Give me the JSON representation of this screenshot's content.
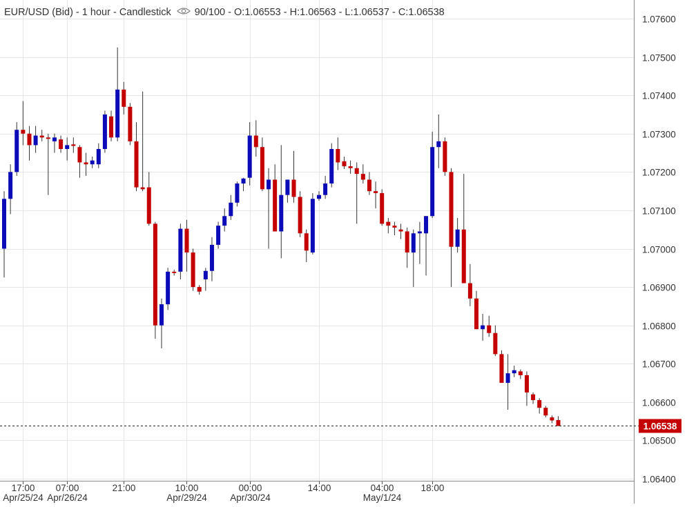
{
  "header": {
    "symbol": "EUR/USD (Bid)",
    "interval": "1 hour",
    "style": "Candlestick",
    "visibility": "90/100",
    "ohlc": "O:1.06553 - H:1.06563 - L:1.06537 - C:1.06538"
  },
  "colors": {
    "up": "#0b0bb8",
    "down": "#c40000",
    "wick": "#333333",
    "grid": "#e6e6e6",
    "price_tag": "#c40000"
  },
  "chart_data": {
    "type": "candlestick",
    "title": "EUR/USD (Bid) - 1 hour - Candlestick",
    "ylim": [
      1.064,
      1.0765
    ],
    "y_ticks": [
      "1.07600",
      "1.07500",
      "1.07400",
      "1.07300",
      "1.07200",
      "1.07100",
      "1.07000",
      "1.06900",
      "1.06800",
      "1.06700",
      "1.06600",
      "1.06500",
      "1.06400"
    ],
    "x_ticks": [
      {
        "index": 3,
        "time": "17:00",
        "date": "Apr/25/24"
      },
      {
        "index": 10,
        "time": "07:00",
        "date": "Apr/26/24"
      },
      {
        "index": 19,
        "time": "21:00",
        "date": ""
      },
      {
        "index": 29,
        "time": "10:00",
        "date": "Apr/29/24"
      },
      {
        "index": 39,
        "time": "00:00",
        "date": "Apr/30/24"
      },
      {
        "index": 50,
        "time": "14:00",
        "date": ""
      },
      {
        "index": 60,
        "time": "04:00",
        "date": "May/1/24"
      },
      {
        "index": 68,
        "time": "18:00",
        "date": ""
      }
    ],
    "last_price": "1.06538",
    "grid": true,
    "candles": [
      {
        "o": 1.07,
        "h": 1.0715,
        "l": 1.06925,
        "c": 1.0713
      },
      {
        "o": 1.0713,
        "h": 1.0722,
        "l": 1.0709,
        "c": 1.072
      },
      {
        "o": 1.072,
        "h": 1.0733,
        "l": 1.0719,
        "c": 1.0731
      },
      {
        "o": 1.0731,
        "h": 1.07385,
        "l": 1.0727,
        "c": 1.073
      },
      {
        "o": 1.073,
        "h": 1.0732,
        "l": 1.0723,
        "c": 1.0727
      },
      {
        "o": 1.0727,
        "h": 1.0732,
        "l": 1.0725,
        "c": 1.07295
      },
      {
        "o": 1.07295,
        "h": 1.0731,
        "l": 1.0728,
        "c": 1.0729
      },
      {
        "o": 1.0729,
        "h": 1.073,
        "l": 1.0714,
        "c": 1.07287
      },
      {
        "o": 1.0728,
        "h": 1.073,
        "l": 1.0725,
        "c": 1.0729
      },
      {
        "o": 1.07285,
        "h": 1.07295,
        "l": 1.0725,
        "c": 1.0726
      },
      {
        "o": 1.0726,
        "h": 1.0729,
        "l": 1.0723,
        "c": 1.0727
      },
      {
        "o": 1.07272,
        "h": 1.0729,
        "l": 1.0725,
        "c": 1.07268
      },
      {
        "o": 1.07265,
        "h": 1.0727,
        "l": 1.07185,
        "c": 1.07225
      },
      {
        "o": 1.07225,
        "h": 1.0725,
        "l": 1.0719,
        "c": 1.0722
      },
      {
        "o": 1.0722,
        "h": 1.0724,
        "l": 1.0721,
        "c": 1.0723
      },
      {
        "o": 1.0722,
        "h": 1.07275,
        "l": 1.0721,
        "c": 1.0726
      },
      {
        "o": 1.0726,
        "h": 1.0736,
        "l": 1.0725,
        "c": 1.0735
      },
      {
        "o": 1.07345,
        "h": 1.0736,
        "l": 1.0728,
        "c": 1.0729
      },
      {
        "o": 1.0729,
        "h": 1.07525,
        "l": 1.0728,
        "c": 1.07415
      },
      {
        "o": 1.07415,
        "h": 1.07435,
        "l": 1.0735,
        "c": 1.0737
      },
      {
        "o": 1.0737,
        "h": 1.0738,
        "l": 1.0727,
        "c": 1.0728
      },
      {
        "o": 1.0728,
        "h": 1.0733,
        "l": 1.0715,
        "c": 1.0716
      },
      {
        "o": 1.0716,
        "h": 1.0741,
        "l": 1.0715,
        "c": 1.07155
      },
      {
        "o": 1.0716,
        "h": 1.072,
        "l": 1.0706,
        "c": 1.07065
      },
      {
        "o": 1.07065,
        "h": 1.0707,
        "l": 1.06765,
        "c": 1.068
      },
      {
        "o": 1.068,
        "h": 1.0687,
        "l": 1.0674,
        "c": 1.06855
      },
      {
        "o": 1.06855,
        "h": 1.0695,
        "l": 1.0684,
        "c": 1.0694
      },
      {
        "o": 1.0694,
        "h": 1.06945,
        "l": 1.0693,
        "c": 1.06938
      },
      {
        "o": 1.0694,
        "h": 1.07065,
        "l": 1.0692,
        "c": 1.07052
      },
      {
        "o": 1.07052,
        "h": 1.07075,
        "l": 1.0694,
        "c": 1.0699
      },
      {
        "o": 1.0699,
        "h": 1.07,
        "l": 1.0689,
        "c": 1.069
      },
      {
        "o": 1.069,
        "h": 1.06905,
        "l": 1.0688,
        "c": 1.06888
      },
      {
        "o": 1.0692,
        "h": 1.0695,
        "l": 1.0689,
        "c": 1.06942
      },
      {
        "o": 1.06942,
        "h": 1.0703,
        "l": 1.06915,
        "c": 1.0701
      },
      {
        "o": 1.0701,
        "h": 1.0707,
        "l": 1.07,
        "c": 1.0706
      },
      {
        "o": 1.0706,
        "h": 1.07105,
        "l": 1.07045,
        "c": 1.07085
      },
      {
        "o": 1.07085,
        "h": 1.0714,
        "l": 1.07075,
        "c": 1.0712
      },
      {
        "o": 1.0712,
        "h": 1.07175,
        "l": 1.0711,
        "c": 1.0717
      },
      {
        "o": 1.0717,
        "h": 1.07185,
        "l": 1.0715,
        "c": 1.07183
      },
      {
        "o": 1.07185,
        "h": 1.0733,
        "l": 1.07165,
        "c": 1.07295
      },
      {
        "o": 1.07295,
        "h": 1.07335,
        "l": 1.0724,
        "c": 1.07265
      },
      {
        "o": 1.07265,
        "h": 1.0729,
        "l": 1.0715,
        "c": 1.07155
      },
      {
        "o": 1.07155,
        "h": 1.0721,
        "l": 1.07,
        "c": 1.0718
      },
      {
        "o": 1.0718,
        "h": 1.0722,
        "l": 1.07045,
        "c": 1.07045
      },
      {
        "o": 1.07045,
        "h": 1.0727,
        "l": 1.06975,
        "c": 1.0714
      },
      {
        "o": 1.0714,
        "h": 1.0718,
        "l": 1.0712,
        "c": 1.0718
      },
      {
        "o": 1.0718,
        "h": 1.07255,
        "l": 1.0712,
        "c": 1.07135
      },
      {
        "o": 1.07135,
        "h": 1.0715,
        "l": 1.0703,
        "c": 1.0704
      },
      {
        "o": 1.0704,
        "h": 1.0705,
        "l": 1.06965,
        "c": 1.06995
      },
      {
        "o": 1.0699,
        "h": 1.07145,
        "l": 1.06985,
        "c": 1.0713
      },
      {
        "o": 1.0713,
        "h": 1.0715,
        "l": 1.07125,
        "c": 1.0714
      },
      {
        "o": 1.0714,
        "h": 1.0719,
        "l": 1.0713,
        "c": 1.0717
      },
      {
        "o": 1.0717,
        "h": 1.07275,
        "l": 1.0716,
        "c": 1.0726
      },
      {
        "o": 1.0726,
        "h": 1.0729,
        "l": 1.07205,
        "c": 1.07225
      },
      {
        "o": 1.07228,
        "h": 1.0724,
        "l": 1.07208,
        "c": 1.07215
      },
      {
        "o": 1.07215,
        "h": 1.0723,
        "l": 1.07195,
        "c": 1.0721
      },
      {
        "o": 1.0721,
        "h": 1.07225,
        "l": 1.07065,
        "c": 1.07195
      },
      {
        "o": 1.07195,
        "h": 1.0722,
        "l": 1.0717,
        "c": 1.0718
      },
      {
        "o": 1.0718,
        "h": 1.072,
        "l": 1.0714,
        "c": 1.0715
      },
      {
        "o": 1.0715,
        "h": 1.07175,
        "l": 1.07105,
        "c": 1.07145
      },
      {
        "o": 1.07145,
        "h": 1.07155,
        "l": 1.0706,
        "c": 1.07065
      },
      {
        "o": 1.0707,
        "h": 1.0708,
        "l": 1.0704,
        "c": 1.0706
      },
      {
        "o": 1.0706,
        "h": 1.0707,
        "l": 1.07035,
        "c": 1.07055
      },
      {
        "o": 1.0705,
        "h": 1.07065,
        "l": 1.07025,
        "c": 1.07045
      },
      {
        "o": 1.07045,
        "h": 1.07055,
        "l": 1.0695,
        "c": 1.0699
      },
      {
        "o": 1.0699,
        "h": 1.0705,
        "l": 1.069,
        "c": 1.0704
      },
      {
        "o": 1.0704,
        "h": 1.0707,
        "l": 1.0696,
        "c": 1.07045
      },
      {
        "o": 1.0704,
        "h": 1.07085,
        "l": 1.0693,
        "c": 1.07085
      },
      {
        "o": 1.07085,
        "h": 1.07305,
        "l": 1.0708,
        "c": 1.07265
      },
      {
        "o": 1.07265,
        "h": 1.0735,
        "l": 1.0721,
        "c": 1.0728
      },
      {
        "o": 1.0728,
        "h": 1.0729,
        "l": 1.0719,
        "c": 1.072
      },
      {
        "o": 1.072,
        "h": 1.0721,
        "l": 1.069,
        "c": 1.07005
      },
      {
        "o": 1.07005,
        "h": 1.0708,
        "l": 1.0699,
        "c": 1.0705
      },
      {
        "o": 1.0705,
        "h": 1.07195,
        "l": 1.0691,
        "c": 1.0691
      },
      {
        "o": 1.0691,
        "h": 1.0696,
        "l": 1.0685,
        "c": 1.0687
      },
      {
        "o": 1.0687,
        "h": 1.0689,
        "l": 1.0679,
        "c": 1.0679
      },
      {
        "o": 1.0679,
        "h": 1.0683,
        "l": 1.0676,
        "c": 1.068
      },
      {
        "o": 1.068,
        "h": 1.06825,
        "l": 1.0677,
        "c": 1.0678
      },
      {
        "o": 1.0678,
        "h": 1.068,
        "l": 1.0672,
        "c": 1.06725
      },
      {
        "o": 1.06725,
        "h": 1.06735,
        "l": 1.0665,
        "c": 1.0665
      },
      {
        "o": 1.0665,
        "h": 1.06725,
        "l": 1.0658,
        "c": 1.06675
      },
      {
        "o": 1.06675,
        "h": 1.06695,
        "l": 1.06665,
        "c": 1.06683
      },
      {
        "o": 1.0668,
        "h": 1.06685,
        "l": 1.0666,
        "c": 1.0667
      },
      {
        "o": 1.0667,
        "h": 1.0668,
        "l": 1.0659,
        "c": 1.06625
      },
      {
        "o": 1.0662,
        "h": 1.06625,
        "l": 1.06595,
        "c": 1.06605
      },
      {
        "o": 1.06605,
        "h": 1.0661,
        "l": 1.0657,
        "c": 1.06585
      },
      {
        "o": 1.06585,
        "h": 1.0659,
        "l": 1.0656,
        "c": 1.06565
      },
      {
        "o": 1.0656,
        "h": 1.06565,
        "l": 1.06545,
        "c": 1.06552
      },
      {
        "o": 1.06553,
        "h": 1.06563,
        "l": 1.06537,
        "c": 1.06538
      }
    ]
  }
}
